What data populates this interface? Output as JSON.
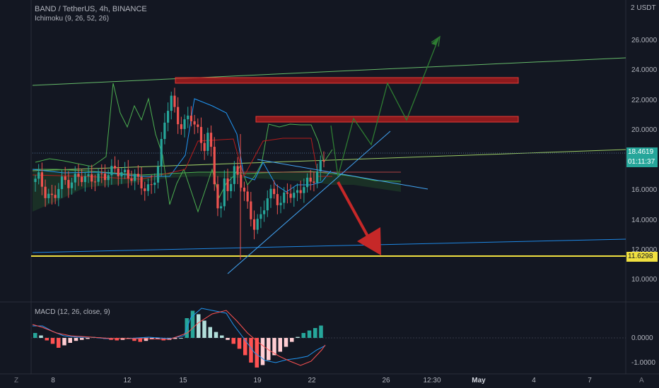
{
  "header": {
    "symbol_line": "BAND / TetherUS, 4h, BINANCE",
    "indicator": "Ichimoku (9, 26, 52, 26)"
  },
  "price_axis": {
    "currency": "USDT",
    "currency_prefix": "2",
    "labels": [
      "26.0000",
      "24.0000",
      "22.0000",
      "20.0000",
      "16.0000",
      "14.0000",
      "12.0000",
      "10.0000"
    ]
  },
  "tags": {
    "last_price": "18.4619",
    "countdown": "01:11:37",
    "support": "11.6298"
  },
  "macd": {
    "title": "MACD (12, 26, close, 9)",
    "labels": [
      "0.0000",
      "-1.0000"
    ]
  },
  "time_axis": {
    "labels": [
      "8",
      "12",
      "15",
      "19",
      "22",
      "26",
      "12:30",
      "May",
      "4",
      "7"
    ]
  },
  "corner_left": "Z",
  "corner_right": "A",
  "colors": {
    "bg": "#131722",
    "up": "#26a69a",
    "down": "#ef5350",
    "support": "#f0e040",
    "resistance": "#b71c1c",
    "trendline": "#42a5f5",
    "projection": "#2e7d32",
    "arrow": "#c62828",
    "macd_line": "#2196f3",
    "signal_line": "#ff5252"
  },
  "chart_data": {
    "type": "candlestick",
    "symbol": "BAND / TetherUS",
    "timeframe": "4h",
    "exchange": "BINANCE",
    "last_price": 18.4619,
    "support_level": 11.6298,
    "resistance_zones": [
      [
        23.1,
        23.4
      ],
      [
        20.5,
        20.8
      ]
    ],
    "y_range": [
      9.0,
      27.5
    ],
    "price_path_points": [
      [
        0,
        17.0
      ],
      [
        8,
        17.4
      ],
      [
        18,
        16.2
      ],
      [
        28,
        15.8
      ],
      [
        38,
        17.1
      ],
      [
        50,
        16.9
      ],
      [
        62,
        17.4
      ],
      [
        75,
        17.2
      ],
      [
        88,
        17.3
      ],
      [
        100,
        17.5
      ],
      [
        110,
        17.9
      ],
      [
        118,
        17.6
      ],
      [
        128,
        17.4
      ],
      [
        138,
        17.3
      ],
      [
        145,
        16.9
      ],
      [
        152,
        16.4
      ],
      [
        160,
        16.8
      ],
      [
        168,
        18.1
      ],
      [
        176,
        21.0
      ],
      [
        184,
        22.8
      ],
      [
        192,
        21.3
      ],
      [
        200,
        20.6
      ],
      [
        210,
        21.6
      ],
      [
        220,
        20.4
      ],
      [
        228,
        19.2
      ],
      [
        234,
        20.2
      ],
      [
        238,
        19.1
      ],
      [
        244,
        16.4
      ],
      [
        250,
        14.5
      ],
      [
        256,
        17.2
      ],
      [
        262,
        16.5
      ],
      [
        270,
        17.9
      ],
      [
        280,
        16.7
      ],
      [
        288,
        15.1
      ],
      [
        296,
        14.0
      ],
      [
        304,
        14.6
      ],
      [
        312,
        16.0
      ],
      [
        320,
        16.3
      ],
      [
        330,
        15.5
      ],
      [
        340,
        16.4
      ],
      [
        350,
        16.0
      ],
      [
        358,
        16.6
      ],
      [
        364,
        17.0
      ],
      [
        370,
        16.9
      ],
      [
        376,
        17.4
      ],
      [
        382,
        18.0
      ],
      [
        388,
        18.46
      ]
    ],
    "macd_histogram": [
      0.1,
      0.05,
      -0.05,
      -0.12,
      -0.2,
      -0.15,
      -0.1,
      -0.06,
      -0.04,
      -0.02,
      0.02,
      0.01,
      -0.02,
      -0.04,
      -0.05,
      -0.04,
      -0.02,
      -0.06,
      -0.08,
      -0.06,
      -0.03,
      -0.02,
      -0.05,
      -0.04,
      -0.02,
      0.0,
      0.4,
      0.55,
      0.48,
      0.35,
      0.22,
      0.12,
      0.05,
      -0.04,
      -0.12,
      -0.22,
      -0.35,
      -0.5,
      -0.6,
      -0.55,
      -0.45,
      -0.35,
      -0.28,
      -0.18,
      -0.08,
      0.02,
      0.1,
      0.15,
      0.2,
      0.25
    ]
  }
}
